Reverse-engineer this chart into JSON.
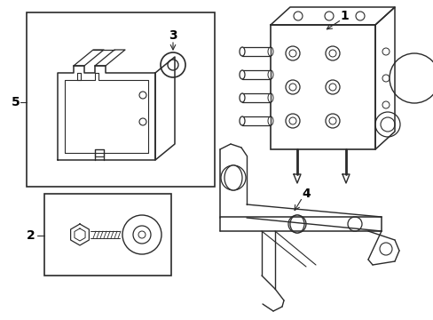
{
  "bg_color": "#ffffff",
  "line_color": "#2a2a2a",
  "text_color": "#000000",
  "label_fontsize": 10,
  "figsize": [
    4.89,
    3.6
  ],
  "dpi": 100
}
